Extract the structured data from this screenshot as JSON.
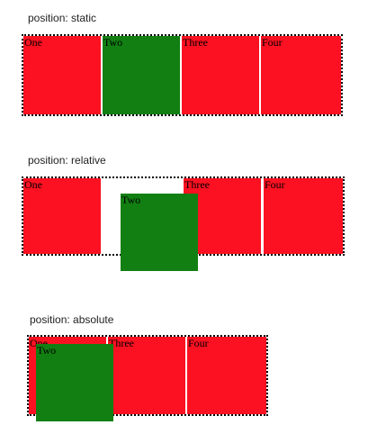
{
  "colors": {
    "box_red": "#fb1121",
    "box_green": "#127f13",
    "container_border": "#000000",
    "background": "#ffffff"
  },
  "sections": [
    {
      "caption": "position: static",
      "boxes": [
        "One",
        "Two",
        "Three",
        "Four"
      ],
      "highlighted_box": "Two"
    },
    {
      "caption": "position: relative",
      "boxes": [
        "One",
        "Two",
        "Three",
        "Four"
      ],
      "highlighted_box": "Two"
    },
    {
      "caption": "position: absolute",
      "boxes": [
        "One",
        "Two",
        "Three",
        "Four"
      ],
      "highlighted_box": "Two"
    }
  ]
}
